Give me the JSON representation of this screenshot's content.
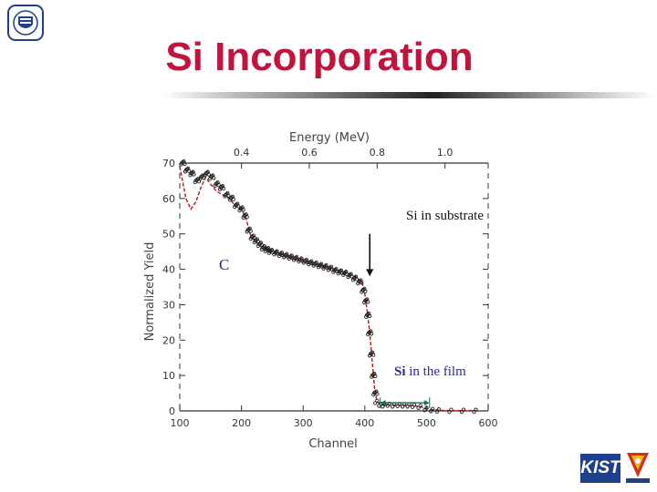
{
  "slide": {
    "title": "Si Incorporation"
  },
  "logos": {
    "top_left": "university-seal",
    "bottom_right_text": "KIST"
  },
  "colors": {
    "title": "#c0143c",
    "annotation_blue": "#2a2a9a",
    "fit_line": "#b01818",
    "data_points": "#202020",
    "arrow_film": "#1a6a5a"
  },
  "chart_data": {
    "type": "scatter",
    "xlabel": "Channel",
    "ylabel": "Normalized Yield",
    "top_axis_label": "Energy (MeV)",
    "xlim": [
      100,
      600
    ],
    "ylim": [
      0,
      70
    ],
    "x_ticks": [
      100,
      200,
      300,
      400,
      500,
      600
    ],
    "y_ticks": [
      0,
      10,
      20,
      30,
      40,
      50,
      60,
      70
    ],
    "top_ticks": [
      {
        "label": "0.4",
        "channel": 200
      },
      {
        "label": "0.6",
        "channel": 310
      },
      {
        "label": "0.8",
        "channel": 420
      },
      {
        "label": "1.0",
        "channel": 530
      }
    ],
    "annotations": {
      "si_substrate": "Si in substrate",
      "carbon": "C",
      "si_film_bold": "Si",
      "si_film_rest": " in the film"
    },
    "measured_points": [
      [
        105,
        70
      ],
      [
        112,
        68
      ],
      [
        120,
        67
      ],
      [
        128,
        65
      ],
      [
        136,
        66
      ],
      [
        144,
        67
      ],
      [
        152,
        66
      ],
      [
        160,
        64
      ],
      [
        168,
        63
      ],
      [
        176,
        61
      ],
      [
        184,
        60
      ],
      [
        192,
        58
      ],
      [
        200,
        57
      ],
      [
        206,
        55
      ],
      [
        212,
        51
      ],
      [
        218,
        49
      ],
      [
        224,
        48
      ],
      [
        230,
        47
      ],
      [
        236,
        46
      ],
      [
        242,
        45.5
      ],
      [
        248,
        45
      ],
      [
        256,
        44.6
      ],
      [
        264,
        44.2
      ],
      [
        272,
        43.8
      ],
      [
        280,
        43.4
      ],
      [
        288,
        43
      ],
      [
        296,
        42.6
      ],
      [
        304,
        42.2
      ],
      [
        312,
        41.8
      ],
      [
        320,
        41.4
      ],
      [
        328,
        41
      ],
      [
        336,
        40.6
      ],
      [
        344,
        40.2
      ],
      [
        352,
        39.6
      ],
      [
        360,
        39.2
      ],
      [
        368,
        38.8
      ],
      [
        376,
        38.2
      ],
      [
        384,
        37.4
      ],
      [
        392,
        36.4
      ],
      [
        398,
        34
      ],
      [
        402,
        31
      ],
      [
        405,
        27
      ],
      [
        408,
        22
      ],
      [
        411,
        16
      ],
      [
        414,
        10
      ],
      [
        417,
        5
      ],
      [
        420,
        2.6
      ],
      [
        426,
        1.8
      ],
      [
        432,
        1.6
      ],
      [
        440,
        1.8
      ],
      [
        448,
        1.6
      ],
      [
        456,
        1.7
      ],
      [
        464,
        1.6
      ],
      [
        472,
        1.6
      ],
      [
        480,
        1.5
      ],
      [
        490,
        1.2
      ],
      [
        500,
        0.6
      ],
      [
        510,
        0.3
      ],
      [
        520,
        0.2
      ],
      [
        540,
        0.1
      ],
      [
        560,
        0.1
      ],
      [
        580,
        0.1
      ]
    ],
    "fit_line": [
      [
        100,
        69
      ],
      [
        110,
        60
      ],
      [
        118,
        57
      ],
      [
        126,
        59
      ],
      [
        134,
        63
      ],
      [
        142,
        66
      ],
      [
        150,
        64
      ],
      [
        160,
        62
      ],
      [
        170,
        61
      ],
      [
        180,
        60
      ],
      [
        190,
        58
      ],
      [
        200,
        57
      ],
      [
        208,
        54
      ],
      [
        214,
        50
      ],
      [
        222,
        48
      ],
      [
        232,
        46.5
      ],
      [
        250,
        45
      ],
      [
        280,
        43.4
      ],
      [
        310,
        41.9
      ],
      [
        340,
        40.4
      ],
      [
        370,
        38.9
      ],
      [
        388,
        37.5
      ],
      [
        396,
        36
      ],
      [
        400,
        33
      ],
      [
        404,
        28
      ],
      [
        408,
        22
      ],
      [
        412,
        14
      ],
      [
        416,
        6
      ],
      [
        420,
        2.5
      ],
      [
        430,
        1.7
      ],
      [
        470,
        1.6
      ],
      [
        490,
        1.2
      ],
      [
        505,
        0.4
      ],
      [
        530,
        0.1
      ],
      [
        580,
        0.1
      ]
    ],
    "film_arrow": {
      "from": 425,
      "to": 505,
      "y": 2.3
    },
    "substrate_arrow": {
      "channel": 408,
      "y_top": 50,
      "y_bottom": 38
    },
    "grid": false,
    "legend": "none"
  }
}
